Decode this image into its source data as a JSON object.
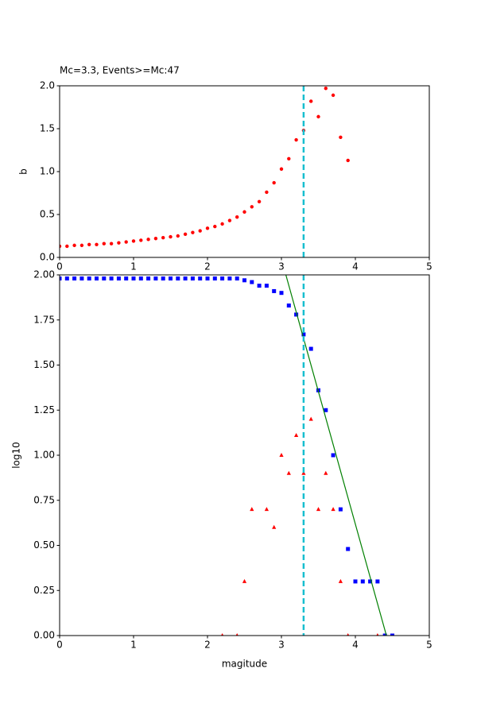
{
  "chart_data": [
    {
      "type": "scatter",
      "title": "Mc=3.3, Events>=Mc:47",
      "ylabel": "b",
      "xlim": [
        0,
        5
      ],
      "ylim": [
        0,
        2
      ],
      "xticks": [
        0,
        1,
        2,
        3,
        4,
        5
      ],
      "yticks": [
        {
          "value": 0,
          "label": "0.0"
        },
        {
          "value": 0.5,
          "label": "0.5"
        },
        {
          "value": 1,
          "label": "1.0"
        },
        {
          "value": 1.5,
          "label": "1.5"
        },
        {
          "value": 2,
          "label": "2.0"
        }
      ],
      "vline": {
        "x": 3.3,
        "color": "#17becf"
      },
      "series": [
        {
          "color": "#ff0000",
          "marker": "circle",
          "x": [
            0,
            0.1,
            0.2,
            0.3,
            0.4,
            0.5,
            0.6,
            0.7,
            0.8,
            0.9,
            1.0,
            1.1,
            1.2,
            1.3,
            1.4,
            1.5,
            1.6,
            1.7,
            1.8,
            1.9,
            2.0,
            2.1,
            2.2,
            2.3,
            2.4,
            2.5,
            2.6,
            2.7,
            2.8,
            2.9,
            3.0,
            3.1,
            3.2,
            3.3,
            3.4,
            3.5,
            3.6,
            3.7,
            3.8,
            3.9
          ],
          "values": [
            0.13,
            0.13,
            0.14,
            0.14,
            0.15,
            0.15,
            0.16,
            0.16,
            0.17,
            0.18,
            0.19,
            0.2,
            0.21,
            0.22,
            0.23,
            0.24,
            0.25,
            0.27,
            0.29,
            0.31,
            0.34,
            0.36,
            0.39,
            0.43,
            0.47,
            0.53,
            0.59,
            0.65,
            0.76,
            0.87,
            1.03,
            1.15,
            1.37,
            1.48,
            1.82,
            1.64,
            1.97,
            1.89,
            1.4,
            1.13
          ]
        }
      ]
    },
    {
      "type": "scatter",
      "xlabel": "magitude",
      "ylabel": "log10",
      "xlim": [
        0,
        5
      ],
      "ylim": [
        0,
        2
      ],
      "xticks": [
        0,
        1,
        2,
        3,
        4,
        5
      ],
      "yticks": [
        {
          "value": 0,
          "label": "0.00"
        },
        {
          "value": 0.25,
          "label": "0.25"
        },
        {
          "value": 0.5,
          "label": "0.50"
        },
        {
          "value": 0.75,
          "label": "0.75"
        },
        {
          "value": 1,
          "label": "1.00"
        },
        {
          "value": 1.25,
          "label": "1.25"
        },
        {
          "value": 1.5,
          "label": "1.50"
        },
        {
          "value": 1.75,
          "label": "1.75"
        },
        {
          "value": 2,
          "label": "2.00"
        }
      ],
      "vline": {
        "x": 3.3,
        "color": "#17becf"
      },
      "series": [
        {
          "color": "#0000ff",
          "marker": "square",
          "x": [
            0,
            0.1,
            0.2,
            0.3,
            0.4,
            0.5,
            0.6,
            0.7,
            0.8,
            0.9,
            1.0,
            1.1,
            1.2,
            1.3,
            1.4,
            1.5,
            1.6,
            1.7,
            1.8,
            1.9,
            2.0,
            2.1,
            2.2,
            2.3,
            2.4,
            2.5,
            2.6,
            2.7,
            2.8,
            2.9,
            3.0,
            3.1,
            3.2,
            3.3,
            3.4,
            3.5,
            3.6,
            3.7,
            3.8,
            3.9,
            4.0,
            4.1,
            4.2,
            4.3,
            4.4,
            4.5
          ],
          "values": [
            1.98,
            1.98,
            1.98,
            1.98,
            1.98,
            1.98,
            1.98,
            1.98,
            1.98,
            1.98,
            1.98,
            1.98,
            1.98,
            1.98,
            1.98,
            1.98,
            1.98,
            1.98,
            1.98,
            1.98,
            1.98,
            1.98,
            1.98,
            1.98,
            1.98,
            1.97,
            1.96,
            1.94,
            1.94,
            1.91,
            1.9,
            1.83,
            1.78,
            1.67,
            1.59,
            1.36,
            1.25,
            1.0,
            0.7,
            0.48,
            0.3,
            0.3,
            0.3,
            0.3,
            0,
            0
          ]
        },
        {
          "color": "#ff0000",
          "marker": "triangle",
          "x": [
            2.2,
            2.4,
            2.5,
            2.6,
            2.8,
            2.9,
            3.0,
            3.1,
            3.2,
            3.3,
            3.4,
            3.5,
            3.6,
            3.7,
            3.8,
            3.9,
            4.3
          ],
          "values": [
            0,
            0,
            0.3,
            0.7,
            0.7,
            0.6,
            1.0,
            0.9,
            1.11,
            0.9,
            1.2,
            0.7,
            0.9,
            0.7,
            0.3,
            0,
            0
          ]
        },
        {
          "color": "#008000",
          "marker": "line",
          "x": [
            3.06,
            4.42
          ],
          "values": [
            2.0,
            0
          ]
        }
      ]
    }
  ]
}
